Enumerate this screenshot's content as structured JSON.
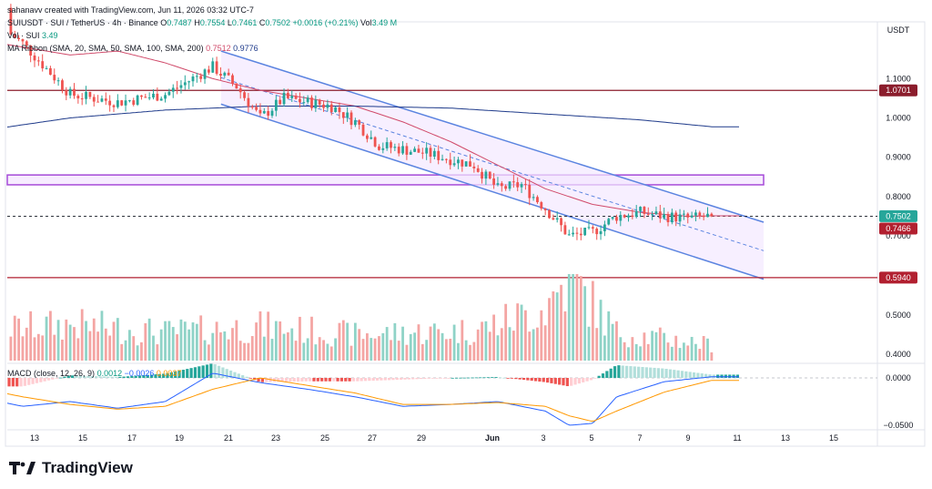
{
  "header": {
    "created": "sahanavv created with TradingView.com, Jun 11, 2026 03:32 UTC-7",
    "symbol": "SUIUSDT · SUI / TetherUS · 4h · Binance",
    "ohlc": [
      {
        "k": "O",
        "v": "0.7487"
      },
      {
        "k": "H",
        "v": "0.7554"
      },
      {
        "k": "L",
        "v": "0.7461"
      },
      {
        "k": "C",
        "v": "0.7502"
      }
    ],
    "change": "+0.0016 (+0.21%)",
    "vol_label": "Vol",
    "vol_value": "3.49 M",
    "vol_line": "Vol · SUI",
    "vol_line_value": "3.49",
    "ma_label": "MA Ribbon (SMA, 20, SMA, 50, SMA, 100, SMA, 200)",
    "ma_values": [
      "0.7512",
      "0.9776"
    ],
    "macd_label": "MACD (close, 12, 26, 9)",
    "macd_values": [
      "0.0012",
      "−0.0026",
      "0.0037"
    ]
  },
  "brand": {
    "name": "TradingView"
  },
  "colors": {
    "up": "#26a69a",
    "down": "#ef5350",
    "sma20": "#d04a6a",
    "sma200": "#1e3a8a",
    "channel": "#5b84e0",
    "channel_fill": "#f4e8ff",
    "zone": "#a64bd8",
    "zone_fill": "#f7ecff",
    "resistance": "#8b1d2c",
    "support": "#b22030",
    "macd_line": "#2962ff",
    "signal_line": "#ff9800"
  },
  "chart_data": {
    "type": "candlestick",
    "timeframe": "4h",
    "currency": "USDT",
    "price_axis": {
      "ticks": [
        "1.1000",
        "1.0000",
        "0.9000",
        "0.8000",
        "0.7000",
        "0.5000",
        "0.4000"
      ],
      "labels": [
        {
          "value": "1.0701",
          "type": "resistance"
        },
        {
          "value": "0.7502",
          "type": "last"
        },
        {
          "value": "0.7466",
          "type": "prev-close"
        },
        {
          "value": "0.5940",
          "type": "support"
        }
      ]
    },
    "macd_axis": {
      "ticks": [
        "0.0000",
        "−0.0500"
      ]
    },
    "x_ticks": [
      "13",
      "15",
      "17",
      "19",
      "21",
      "23",
      "25",
      "27",
      "29",
      "Jun",
      "3",
      "5",
      "7",
      "9",
      "11",
      "13",
      "15"
    ],
    "series": [
      {
        "name": "SMA 20",
        "value": 0.7512
      },
      {
        "name": "SMA 200",
        "value": 0.9776
      }
    ],
    "candles": {
      "resolution": "approx. 4h",
      "anchors": [
        {
          "date": "2026-05-11",
          "price": 1.28
        },
        {
          "date": "2026-05-13",
          "price": 1.19
        },
        {
          "date": "2026-05-15",
          "price": 1.06
        },
        {
          "date": "2026-05-17",
          "price": 1.04
        },
        {
          "date": "2026-05-19",
          "price": 1.06
        },
        {
          "date": "2026-05-21",
          "price": 1.13
        },
        {
          "date": "2026-05-22",
          "price": 1.08
        },
        {
          "date": "2026-05-23",
          "price": 1.0
        },
        {
          "date": "2026-05-24",
          "price": 1.05
        },
        {
          "date": "2026-05-26",
          "price": 1.03
        },
        {
          "date": "2026-05-27",
          "price": 0.99
        },
        {
          "date": "2026-05-28",
          "price": 0.93
        },
        {
          "date": "2026-05-30",
          "price": 0.91
        },
        {
          "date": "2026-06-01",
          "price": 0.88
        },
        {
          "date": "2026-06-02",
          "price": 0.82
        },
        {
          "date": "2026-06-03",
          "price": 0.83
        },
        {
          "date": "2026-06-04",
          "price": 0.77
        },
        {
          "date": "2026-06-05",
          "price": 0.7
        },
        {
          "date": "2026-06-06",
          "price": 0.71
        },
        {
          "date": "2026-06-07",
          "price": 0.75
        },
        {
          "date": "2026-06-08",
          "price": 0.76
        },
        {
          "date": "2026-06-09",
          "price": 0.75
        },
        {
          "date": "2026-06-10",
          "price": 0.745
        },
        {
          "date": "2026-06-11",
          "price": 0.7502
        }
      ]
    },
    "sma20_path": [
      {
        "date": "2026-05-11",
        "price": 1.2
      },
      {
        "date": "2026-05-15",
        "price": 1.16
      },
      {
        "date": "2026-05-17",
        "price": 1.17
      },
      {
        "date": "2026-05-19",
        "price": 1.14
      },
      {
        "date": "2026-05-21",
        "price": 1.1
      },
      {
        "date": "2026-05-23",
        "price": 1.07
      },
      {
        "date": "2026-05-25",
        "price": 1.05
      },
      {
        "date": "2026-05-27",
        "price": 1.03
      },
      {
        "date": "2026-05-29",
        "price": 0.99
      },
      {
        "date": "2026-05-31",
        "price": 0.94
      },
      {
        "date": "2026-06-02",
        "price": 0.88
      },
      {
        "date": "2026-06-04",
        "price": 0.82
      },
      {
        "date": "2026-06-06",
        "price": 0.78
      },
      {
        "date": "2026-06-08",
        "price": 0.76
      },
      {
        "date": "2026-06-10",
        "price": 0.75
      },
      {
        "date": "2026-06-11",
        "price": 0.7512
      }
    ],
    "sma200_path": [
      {
        "date": "2026-05-11",
        "price": 0.965
      },
      {
        "date": "2026-05-15",
        "price": 1.0
      },
      {
        "date": "2026-05-19",
        "price": 1.02
      },
      {
        "date": "2026-05-23",
        "price": 1.03
      },
      {
        "date": "2026-05-27",
        "price": 1.03
      },
      {
        "date": "2026-05-31",
        "price": 1.025
      },
      {
        "date": "2026-06-04",
        "price": 1.01
      },
      {
        "date": "2026-06-08",
        "price": 0.995
      },
      {
        "date": "2026-06-11",
        "price": 0.9776
      }
    ],
    "annotations": [
      {
        "type": "horizontal-line",
        "price": 1.0701
      },
      {
        "type": "horizontal-line",
        "price": 0.594
      },
      {
        "type": "zone",
        "from": 0.83,
        "to": 0.855,
        "start": "2026-05-11",
        "end": "2026-06-12"
      },
      {
        "type": "channel",
        "upper": [
          {
            "date": "2026-05-21",
            "price": 1.17
          },
          {
            "date": "2026-06-12",
            "price": 0.735
          }
        ],
        "lower": [
          {
            "date": "2026-05-21",
            "price": 1.035
          },
          {
            "date": "2026-06-12",
            "price": 0.59
          }
        ]
      }
    ],
    "volume_path": [
      {
        "date": "2026-05-11",
        "value": 1.5
      },
      {
        "date": "2026-05-15",
        "value": 1.8
      },
      {
        "date": "2026-05-19",
        "value": 1.4
      },
      {
        "date": "2026-05-23",
        "value": 1.7
      },
      {
        "date": "2026-05-27",
        "value": 1.3
      },
      {
        "date": "2026-06-01",
        "value": 1.5
      },
      {
        "date": "2026-06-04",
        "value": 2.6
      },
      {
        "date": "2026-06-05",
        "value": 4.2
      },
      {
        "date": "2026-06-07",
        "value": 1.4
      },
      {
        "date": "2026-06-11",
        "value": 0.8
      }
    ],
    "macd_path": [
      {
        "date": "2026-05-11",
        "macd": -0.02,
        "signal": -0.01
      },
      {
        "date": "2026-05-13",
        "macd": -0.03,
        "signal": -0.02
      },
      {
        "date": "2026-05-15",
        "macd": -0.025,
        "signal": -0.028
      },
      {
        "date": "2026-05-17",
        "macd": -0.032,
        "signal": -0.033
      },
      {
        "date": "2026-05-19",
        "macd": -0.025,
        "signal": -0.03
      },
      {
        "date": "2026-05-21",
        "macd": 0.005,
        "signal": -0.012
      },
      {
        "date": "2026-05-23",
        "macd": -0.005,
        "signal": 0.0
      },
      {
        "date": "2026-05-25",
        "macd": -0.012,
        "signal": -0.008
      },
      {
        "date": "2026-05-27",
        "macd": -0.02,
        "signal": -0.016
      },
      {
        "date": "2026-05-29",
        "macd": -0.03,
        "signal": -0.028
      },
      {
        "date": "2026-05-31",
        "macd": -0.028,
        "signal": -0.028
      },
      {
        "date": "2026-06-02",
        "macd": -0.025,
        "signal": -0.026
      },
      {
        "date": "2026-06-04",
        "macd": -0.035,
        "signal": -0.03
      },
      {
        "date": "2026-06-05",
        "macd": -0.05,
        "signal": -0.04
      },
      {
        "date": "2026-06-06",
        "macd": -0.048,
        "signal": -0.046
      },
      {
        "date": "2026-06-07",
        "macd": -0.02,
        "signal": -0.035
      },
      {
        "date": "2026-06-09",
        "macd": -0.004,
        "signal": -0.015
      },
      {
        "date": "2026-06-11",
        "macd": 0.0012,
        "signal": -0.0026
      }
    ]
  }
}
